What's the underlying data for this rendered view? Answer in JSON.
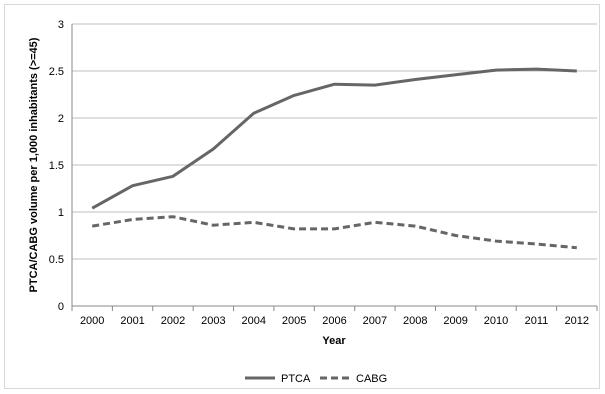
{
  "chart_data": {
    "type": "line",
    "title": "",
    "xlabel": "Year",
    "ylabel": "PTCA/CABG volume per 1,000 inhabitants (>=45)",
    "categories": [
      "2000",
      "2001",
      "2002",
      "2003",
      "2004",
      "2005",
      "2006",
      "2007",
      "2008",
      "2009",
      "2010",
      "2011",
      "2012"
    ],
    "ylim": [
      0,
      3
    ],
    "yticks": [
      "0",
      "0.5",
      "1",
      "1.5",
      "2",
      "2.5",
      "3"
    ],
    "grid": true,
    "legend": "bottom",
    "series": [
      {
        "name": "PTCA",
        "style": "solid",
        "color": "#666666",
        "values": [
          1.04,
          1.28,
          1.38,
          1.67,
          2.05,
          2.24,
          2.36,
          2.35,
          2.41,
          2.46,
          2.51,
          2.52,
          2.5
        ]
      },
      {
        "name": "CABG",
        "style": "dashed",
        "color": "#666666",
        "values": [
          0.85,
          0.92,
          0.95,
          0.86,
          0.89,
          0.82,
          0.82,
          0.89,
          0.85,
          0.75,
          0.69,
          0.66,
          0.62
        ]
      }
    ]
  }
}
